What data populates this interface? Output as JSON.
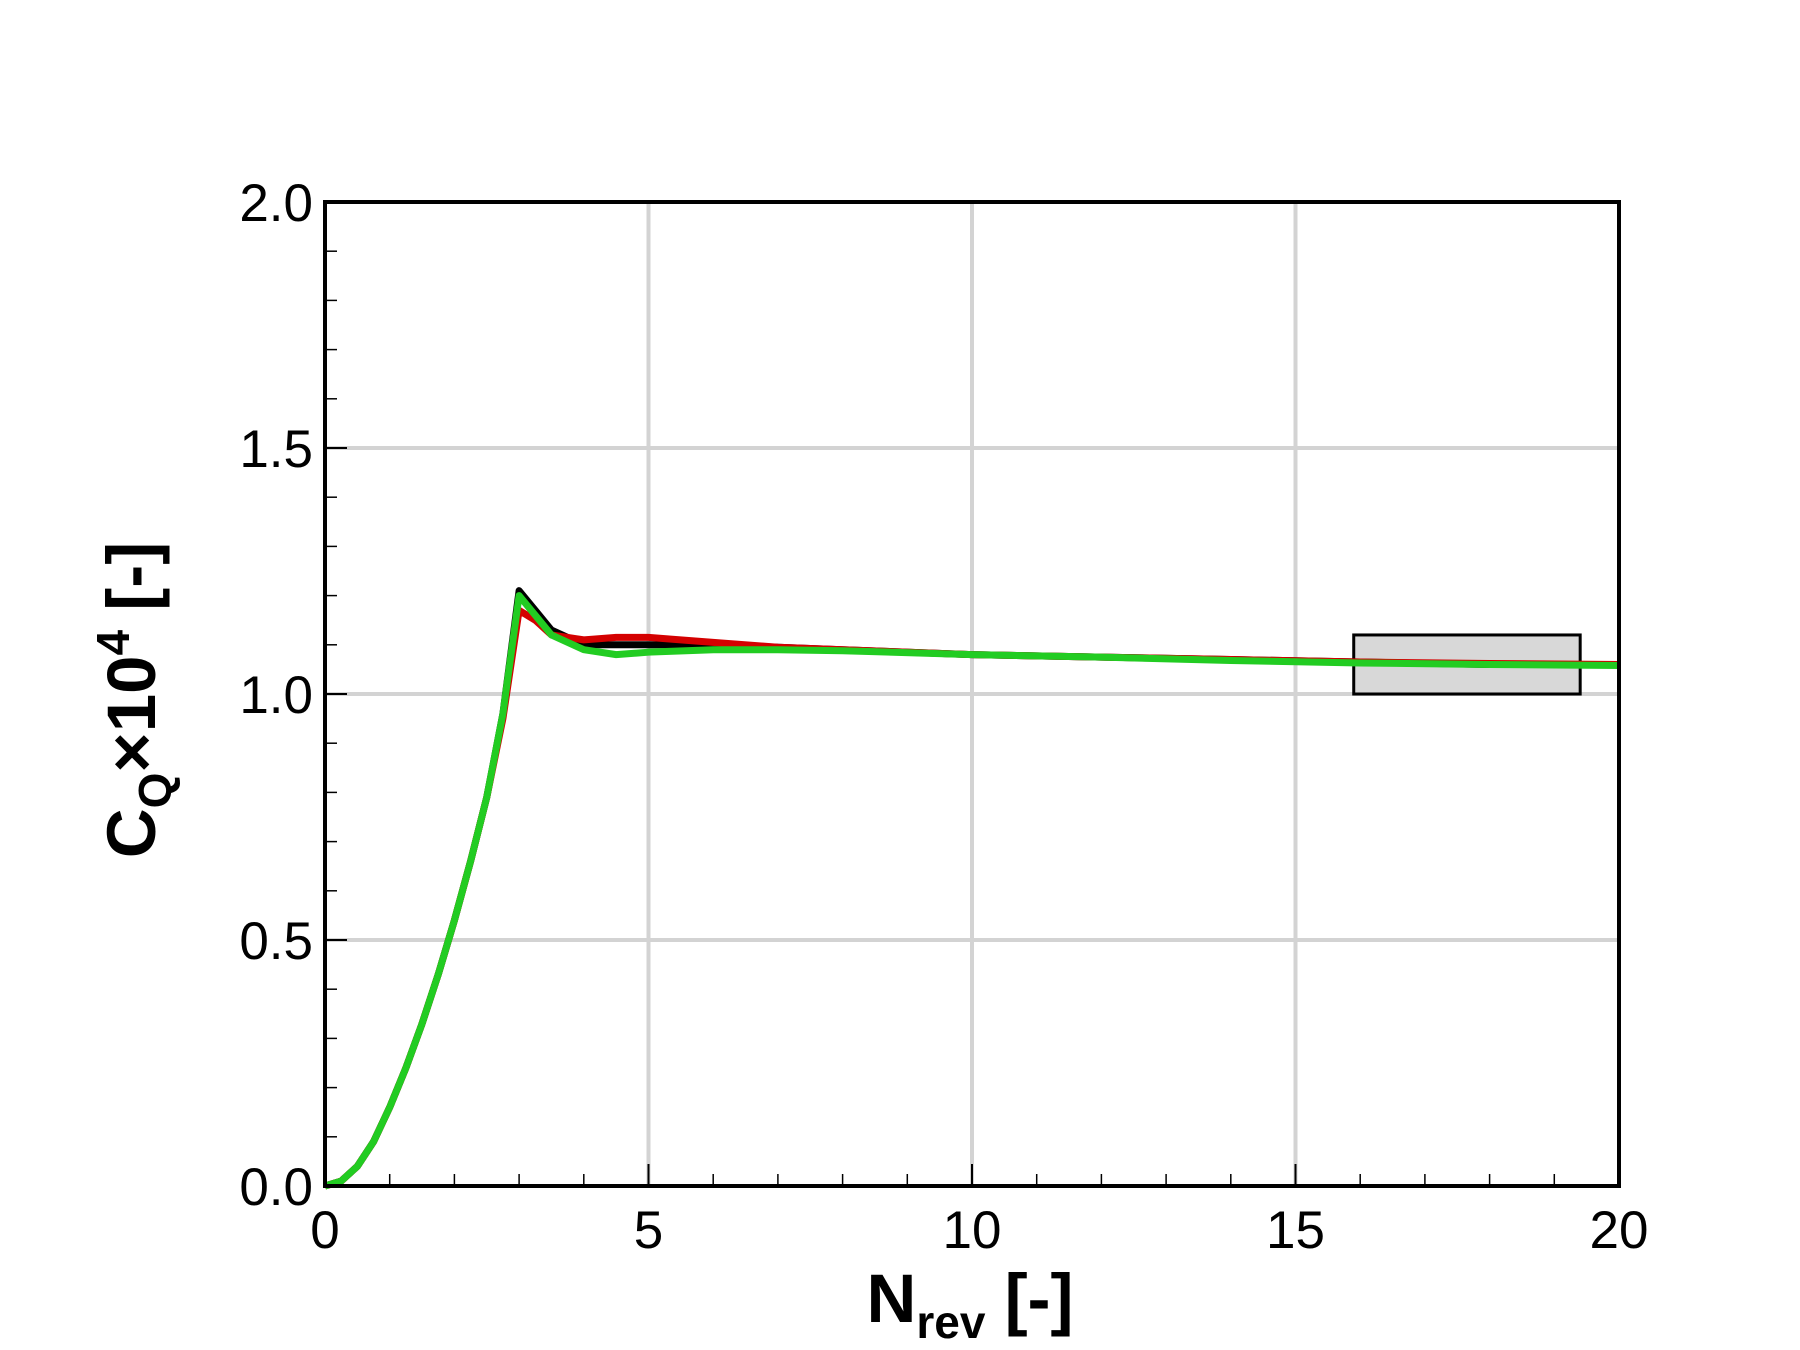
{
  "chart_data": {
    "type": "line",
    "xlabel": {
      "base": "N",
      "sub": "rev",
      "tail": " [-]"
    },
    "ylabel": {
      "base": "C",
      "sub": "Q",
      "mid": "×10",
      "sup": "4",
      "tail": " [-]"
    },
    "x": [
      0,
      0.25,
      0.5,
      0.75,
      1,
      1.25,
      1.5,
      1.75,
      2,
      2.25,
      2.5,
      2.75,
      3,
      3.25,
      3.5,
      4,
      4.5,
      5,
      6,
      7,
      8,
      10,
      12,
      14,
      16,
      18,
      20
    ],
    "series": [
      {
        "color": "#000000",
        "values": [
          0,
          0.01,
          0.04,
          0.09,
          0.16,
          0.24,
          0.33,
          0.43,
          0.54,
          0.66,
          0.79,
          0.96,
          1.21,
          1.17,
          1.13,
          1.1,
          1.1,
          1.1,
          1.1,
          1.095,
          1.09,
          1.08,
          1.075,
          1.07,
          1.065,
          1.06,
          1.06
        ]
      },
      {
        "color": "#d40000",
        "values": [
          0,
          0.01,
          0.04,
          0.09,
          0.16,
          0.24,
          0.33,
          0.43,
          0.54,
          0.66,
          0.79,
          0.95,
          1.17,
          1.15,
          1.12,
          1.11,
          1.115,
          1.115,
          1.105,
          1.095,
          1.09,
          1.08,
          1.075,
          1.07,
          1.065,
          1.062,
          1.06
        ]
      },
      {
        "color": "#22cc22",
        "values": [
          0,
          0.01,
          0.04,
          0.09,
          0.16,
          0.24,
          0.33,
          0.43,
          0.54,
          0.66,
          0.79,
          0.96,
          1.2,
          1.16,
          1.12,
          1.09,
          1.08,
          1.085,
          1.09,
          1.09,
          1.088,
          1.08,
          1.075,
          1.068,
          1.063,
          1.06,
          1.058
        ]
      }
    ],
    "xlim": [
      0,
      20
    ],
    "ylim": [
      0,
      2
    ],
    "xticks": [
      0,
      5,
      10,
      15,
      20
    ],
    "yticks": [
      {
        "value": 0,
        "label": "0.0"
      },
      {
        "value": 0.5,
        "label": "0.5"
      },
      {
        "value": 1,
        "label": "1.0"
      },
      {
        "value": 1.5,
        "label": "1.5"
      },
      {
        "value": 2,
        "label": "2.0"
      }
    ],
    "xminorticks": [
      1,
      2,
      3,
      4,
      6,
      7,
      8,
      9,
      11,
      12,
      13,
      14,
      16,
      17,
      18,
      19
    ],
    "yminorticks": [
      0.1,
      0.2,
      0.3,
      0.4,
      0.6,
      0.7,
      0.8,
      0.9,
      1.1,
      1.2,
      1.3,
      1.4,
      1.6,
      1.7,
      1.8,
      1.9
    ],
    "grid": true,
    "highlight_box": {
      "x": [
        15.9,
        19.4
      ],
      "y": [
        1.0,
        1.12
      ],
      "color": "#d8d8d8"
    }
  }
}
